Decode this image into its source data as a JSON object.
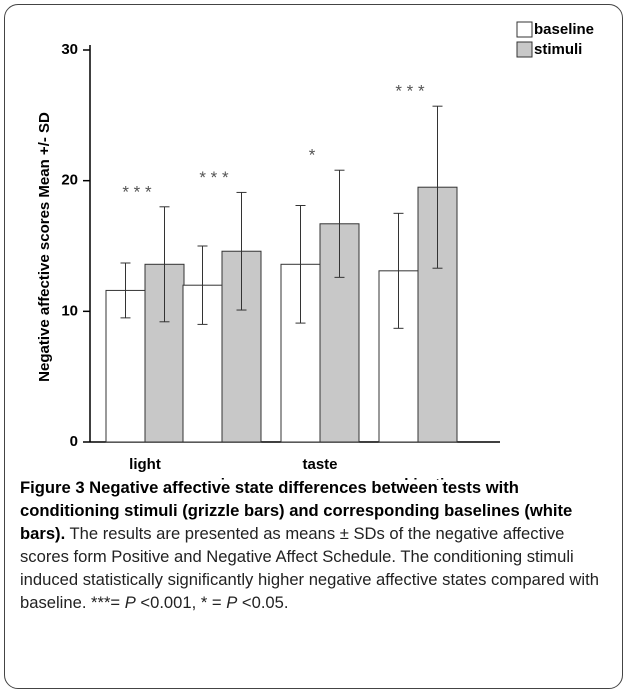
{
  "chart_data": {
    "type": "bar",
    "y_label": "Negative affective scores Mean +/- SD",
    "categories": [
      "light",
      "noise",
      "taste",
      "combination"
    ],
    "series": [
      {
        "name": "baseline",
        "color": "#ffffff",
        "values": [
          11.6,
          12.0,
          13.6,
          13.1
        ],
        "errors": [
          2.1,
          3.0,
          4.5,
          4.4
        ]
      },
      {
        "name": "stimuli",
        "color": "#c8c8c8",
        "values": [
          13.6,
          14.6,
          16.7,
          19.5
        ],
        "errors": [
          4.4,
          4.5,
          4.1,
          6.2
        ]
      }
    ],
    "annotations": [
      "* * *",
      "* * *",
      "*",
      "* * *"
    ],
    "ylim": [
      0,
      30
    ],
    "yticks": [
      0,
      10,
      20,
      30
    ],
    "legend": "top-right"
  },
  "caption": {
    "title": "Figure 3 Negative affective state differences between tests with conditioning stimuli (grizzle bars) and corresponding baselines (white bars).",
    "body": [
      " The results are presented as means ± SDs of the negative affective scores form Positive and Negative Affect Schedule. The conditioning stimuli induced statistically significantly higher negative affective states compared with baseline. ***= ",
      "P",
      " <0.001, * = ",
      "P",
      " <0.05."
    ]
  }
}
